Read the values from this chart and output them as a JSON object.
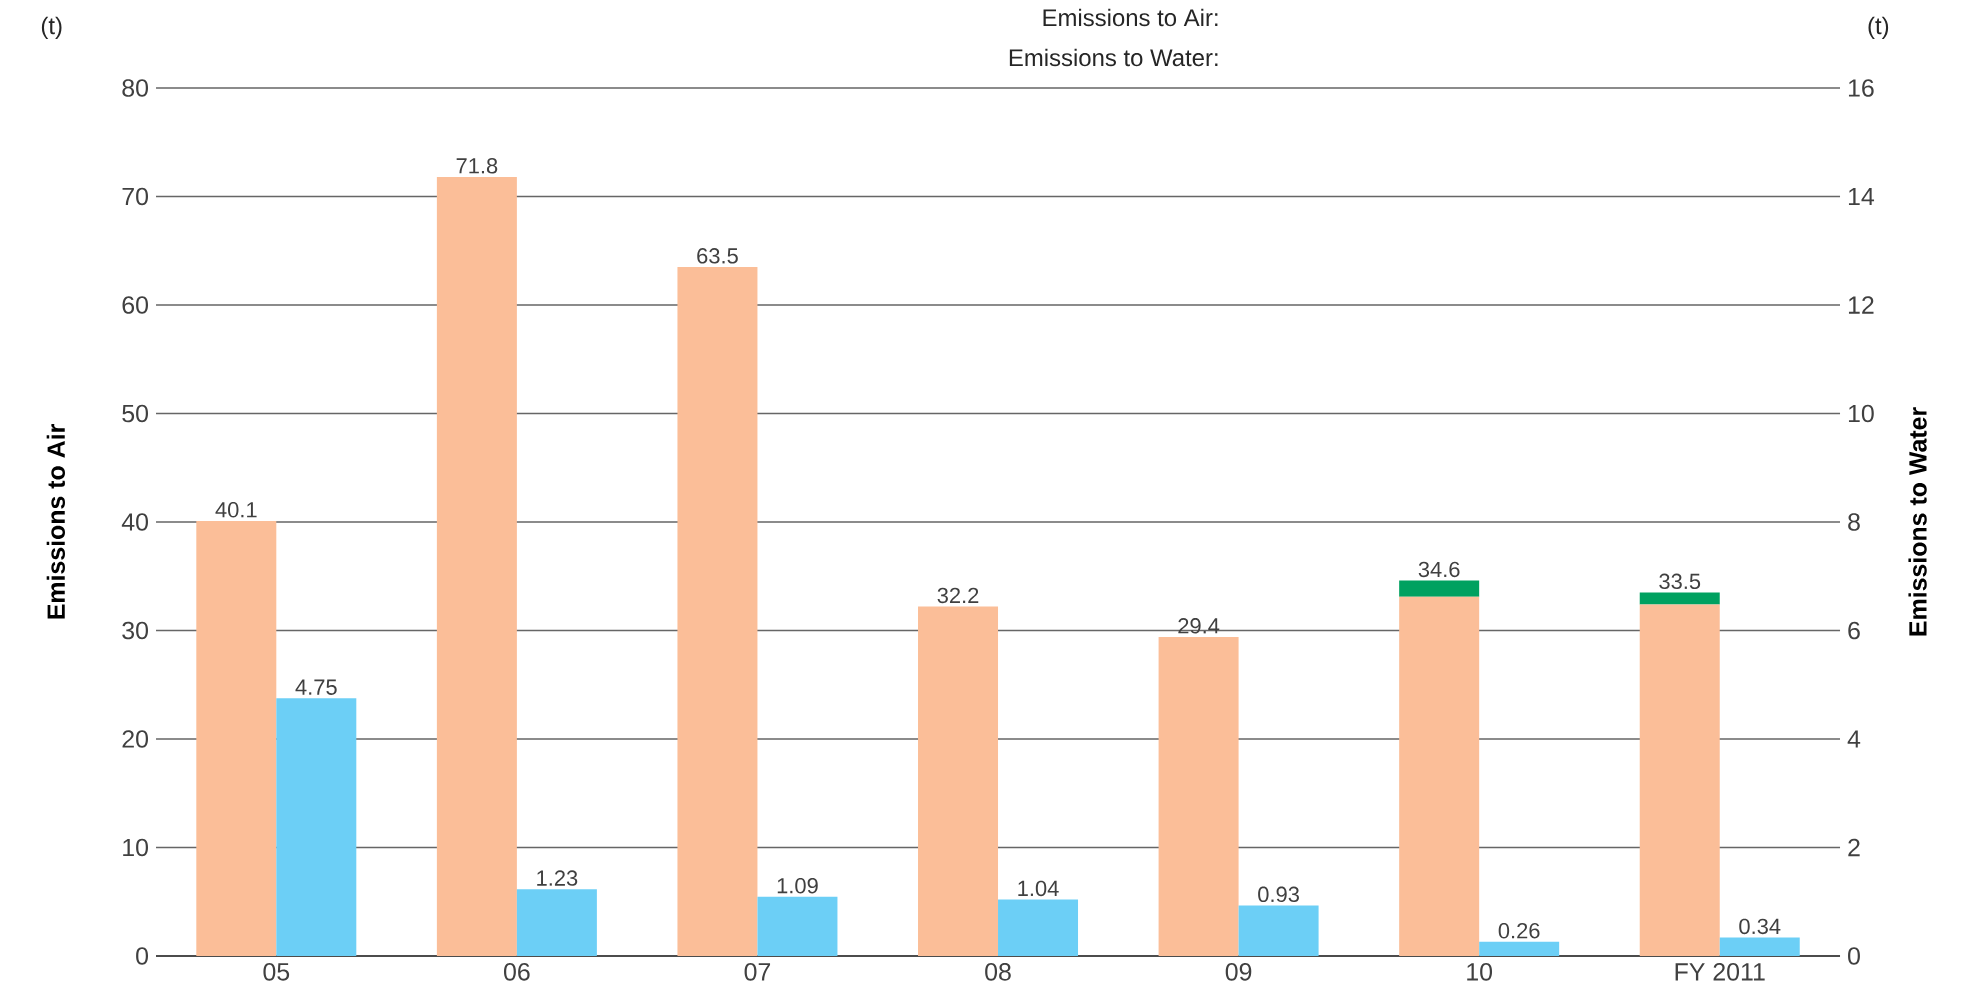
{
  "chart_data": {
    "type": "bar",
    "stacked": true,
    "categories": [
      "05",
      "06",
      "07",
      "08",
      "09",
      "10",
      "FY 2011"
    ],
    "series": [
      {
        "color": "#fbbe98",
        "values": [
          40.1,
          71.8,
          63.5,
          32.2,
          29.4,
          33.1,
          32.4
        ]
      },
      {
        "color": "#00a160",
        "values": [
          0,
          0,
          0,
          0,
          0,
          1.5,
          1.1
        ]
      },
      {
        "color": "#6ccff6",
        "axis": "y2",
        "values": [
          4.75,
          1.23,
          1.09,
          1.04,
          0.93,
          0.26,
          0.34
        ],
        "value_labels": [
          "4.75",
          "1.23",
          "1.09",
          "1.04",
          "0.93",
          "0.26",
          "0.34"
        ]
      }
    ],
    "totals": [
      "40.1",
      "71.8",
      "63.5",
      "32.2",
      "29.4",
      "34.6",
      "33.5"
    ],
    "ylabel": "Emissions to Air",
    "y2label": "Emissions to Water",
    "ylim": [
      0,
      80
    ],
    "yticks": [
      0,
      10,
      20,
      30,
      40,
      50,
      60,
      70,
      80
    ],
    "y2lim": [
      0,
      16
    ],
    "y2ticks": [
      0,
      2,
      4,
      6,
      8,
      10,
      12,
      14,
      16
    ],
    "grid": "y",
    "annotations": [
      "(t)",
      "(t)",
      "Emissions to Air:",
      "Emissions to Water:"
    ]
  }
}
